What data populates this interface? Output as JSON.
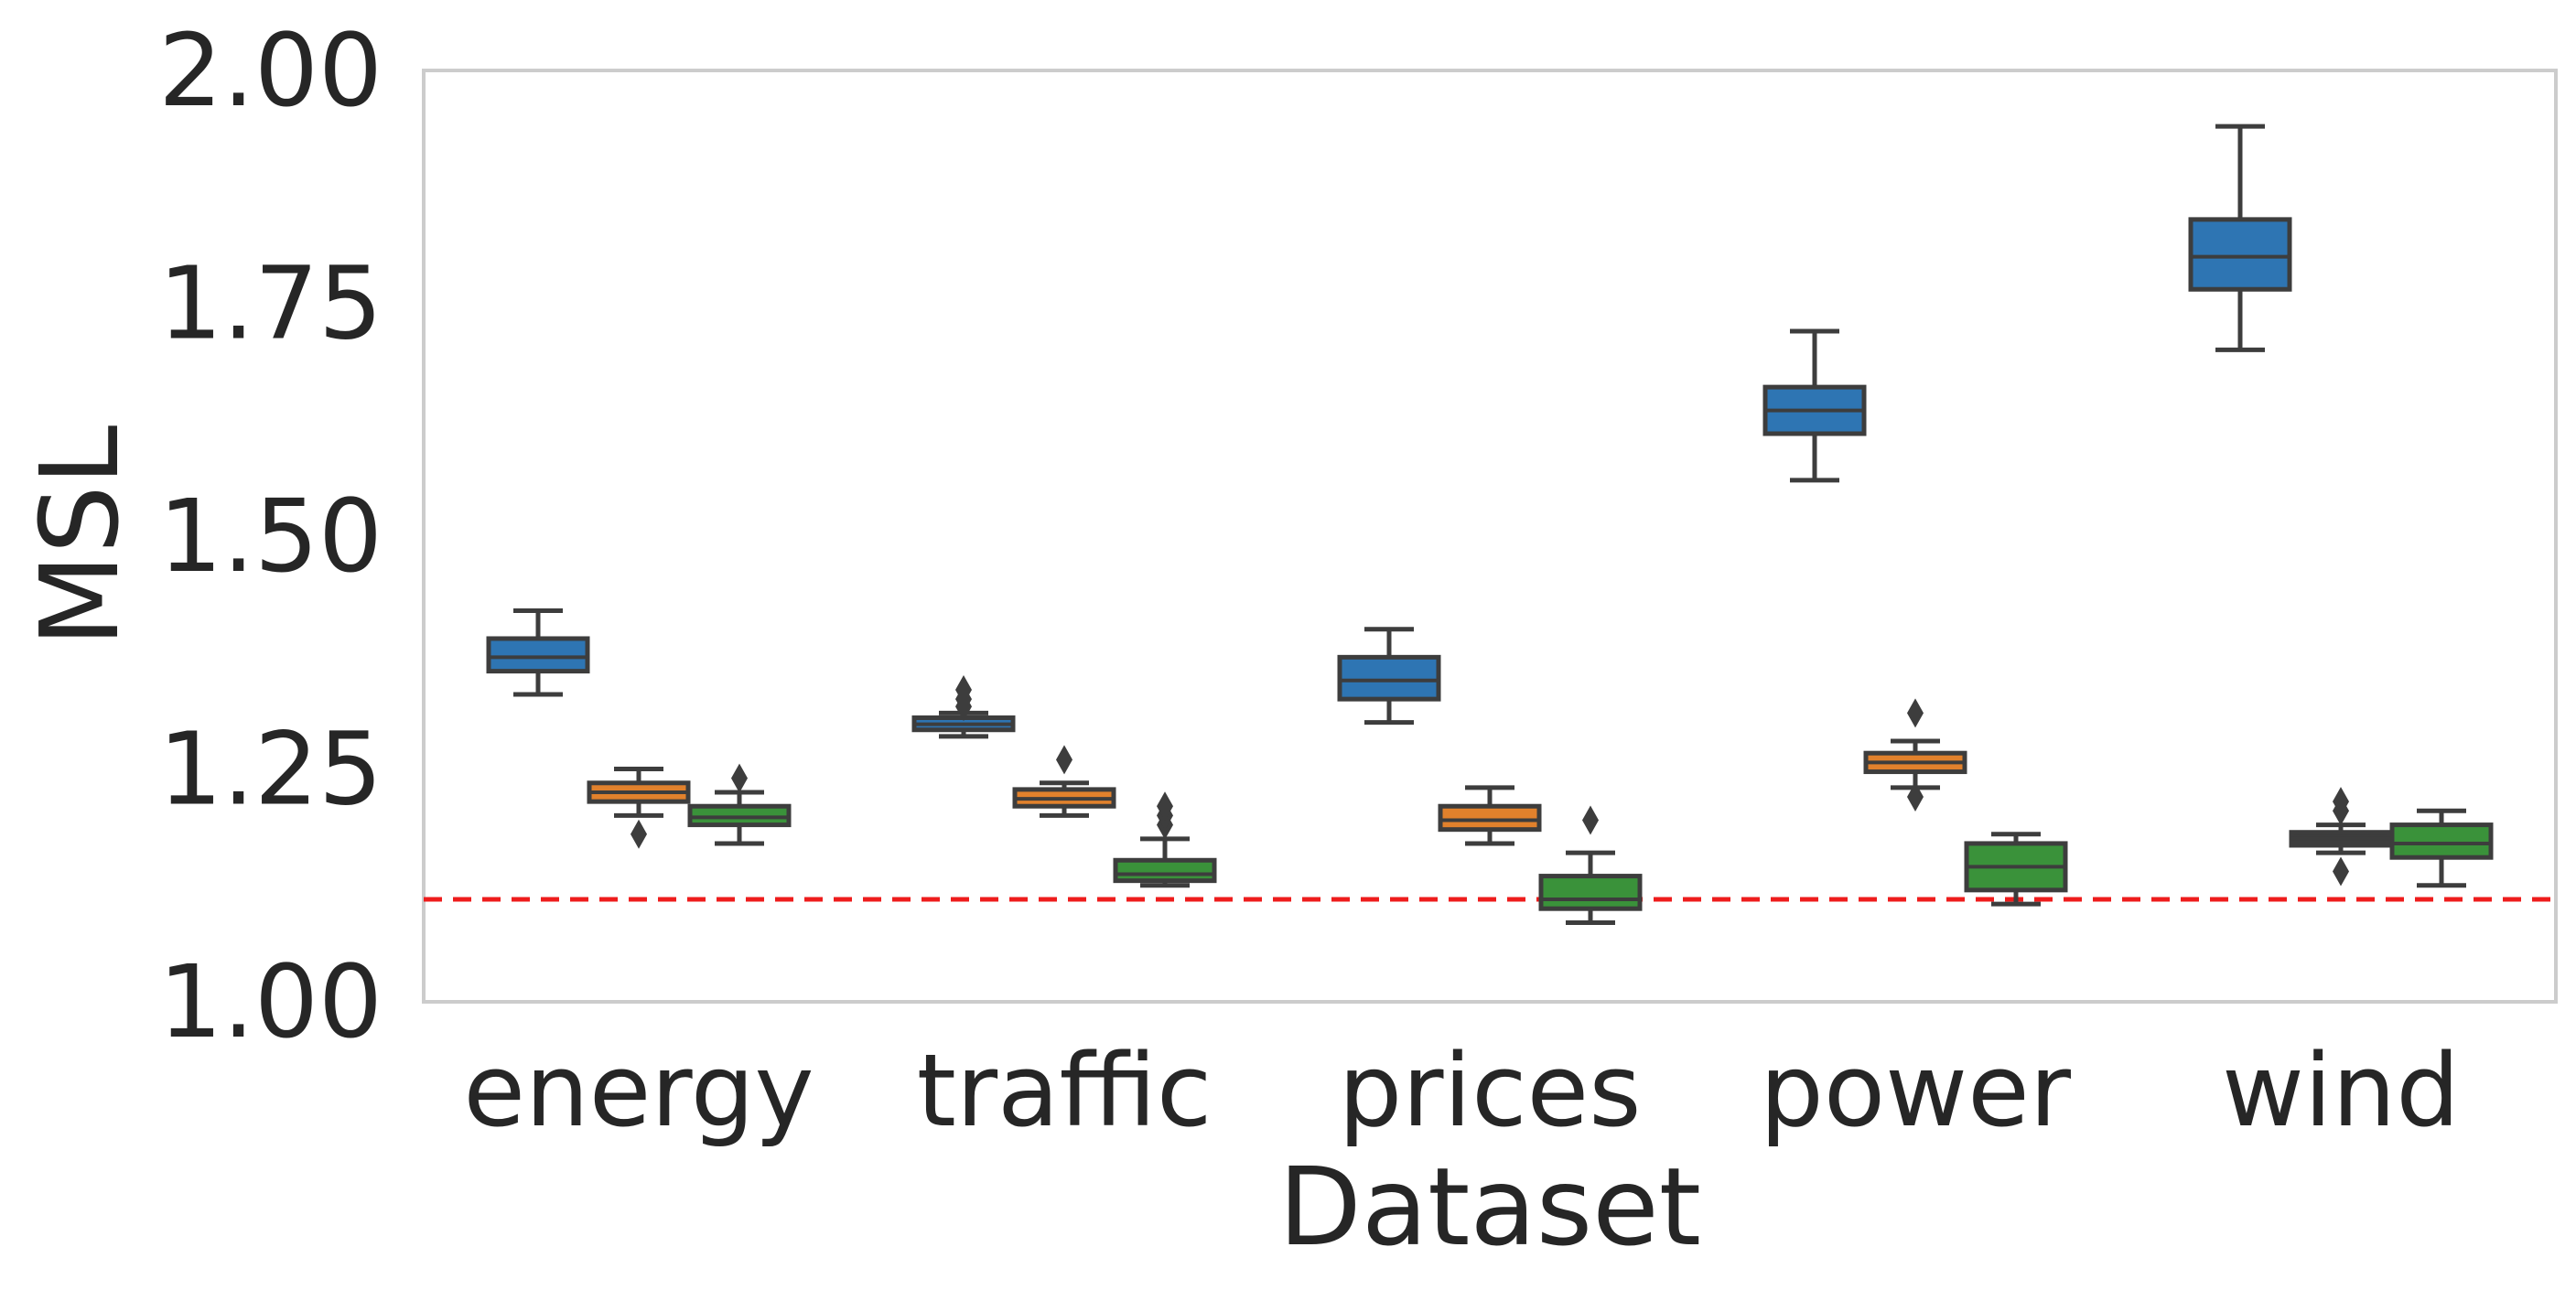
{
  "chart_data": {
    "type": "box",
    "title": "",
    "xlabel": "Dataset",
    "ylabel": "MSL",
    "ylim": [
      1.0,
      2.0
    ],
    "yticks": [
      "1.00",
      "1.25",
      "1.50",
      "1.75",
      "2.00"
    ],
    "categories": [
      "energy",
      "traffic",
      "prices",
      "power",
      "wind"
    ],
    "grid": false,
    "legend": "none",
    "reference_line": {
      "y": 1.11,
      "color": "#ee1c1c",
      "style": "dashed"
    },
    "series": [
      {
        "color": "#2e75b3",
        "boxes": [
          {
            "category": "energy",
            "whisker_low": 1.33,
            "q1": 1.355,
            "median": 1.37,
            "q3": 1.39,
            "whisker_high": 1.42,
            "outliers": []
          },
          {
            "category": "traffic",
            "whisker_low": 1.285,
            "q1": 1.292,
            "median": 1.298,
            "q3": 1.305,
            "whisker_high": 1.31,
            "outliers": [
              1.317,
              1.325,
              1.335
            ]
          },
          {
            "category": "prices",
            "whisker_low": 1.3,
            "q1": 1.325,
            "median": 1.345,
            "q3": 1.37,
            "whisker_high": 1.4,
            "outliers": []
          },
          {
            "category": "power",
            "whisker_low": 1.56,
            "q1": 1.61,
            "median": 1.635,
            "q3": 1.66,
            "whisker_high": 1.72,
            "outliers": []
          },
          {
            "category": "wind",
            "whisker_low": 1.7,
            "q1": 1.765,
            "median": 1.8,
            "q3": 1.84,
            "whisker_high": 1.94,
            "outliers": []
          }
        ]
      },
      {
        "color": "#e1812c",
        "boxes": [
          {
            "category": "energy",
            "whisker_low": 1.2,
            "q1": 1.215,
            "median": 1.225,
            "q3": 1.235,
            "whisker_high": 1.25,
            "outliers": [
              1.18
            ]
          },
          {
            "category": "traffic",
            "whisker_low": 1.2,
            "q1": 1.21,
            "median": 1.218,
            "q3": 1.228,
            "whisker_high": 1.235,
            "outliers": [
              1.26
            ]
          },
          {
            "category": "prices",
            "whisker_low": 1.17,
            "q1": 1.185,
            "median": 1.195,
            "q3": 1.21,
            "whisker_high": 1.23,
            "outliers": []
          },
          {
            "category": "power",
            "whisker_low": 1.23,
            "q1": 1.247,
            "median": 1.257,
            "q3": 1.267,
            "whisker_high": 1.28,
            "outliers": [
              1.22,
              1.31
            ]
          }
        ]
      },
      {
        "color": "#3a923a",
        "boxes": [
          {
            "category": "energy",
            "whisker_low": 1.17,
            "q1": 1.19,
            "median": 1.198,
            "q3": 1.21,
            "whisker_high": 1.225,
            "outliers": [
              1.24
            ]
          },
          {
            "category": "traffic",
            "whisker_low": 1.125,
            "q1": 1.13,
            "median": 1.137,
            "q3": 1.152,
            "whisker_high": 1.175,
            "outliers": [
              1.19,
              1.2,
              1.21
            ]
          },
          {
            "category": "prices",
            "whisker_low": 1.085,
            "q1": 1.1,
            "median": 1.11,
            "q3": 1.135,
            "whisker_high": 1.16,
            "outliers": [
              1.195
            ]
          },
          {
            "category": "power",
            "whisker_low": 1.105,
            "q1": 1.12,
            "median": 1.145,
            "q3": 1.17,
            "whisker_high": 1.18,
            "outliers": []
          },
          {
            "category": "wind",
            "whisker_low": 1.125,
            "q1": 1.155,
            "median": 1.17,
            "q3": 1.19,
            "whisker_high": 1.205,
            "outliers": []
          }
        ]
      },
      {
        "color": "#3d3d3d",
        "boxes": [
          {
            "category": "wind",
            "whisker_low": 1.16,
            "q1": 1.168,
            "median": 1.175,
            "q3": 1.182,
            "whisker_high": 1.19,
            "outliers": [
              1.14,
              1.205,
              1.215
            ]
          }
        ]
      }
    ]
  }
}
